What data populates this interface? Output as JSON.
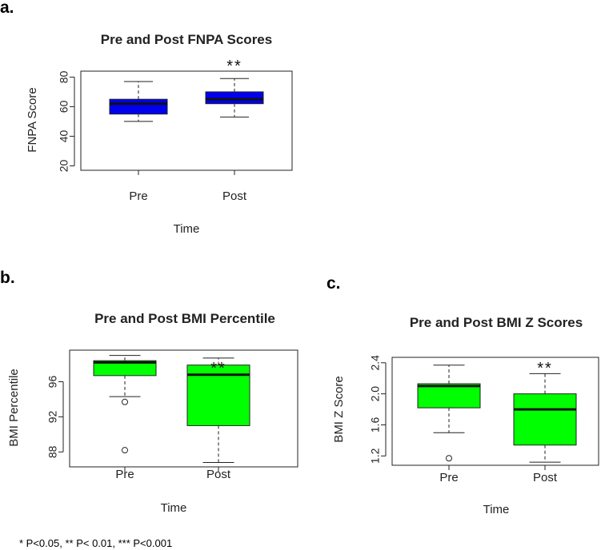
{
  "panels": [
    {
      "label": "a."
    },
    {
      "label": "b."
    },
    {
      "label": "c."
    }
  ],
  "footnote": "* P<0.05, ** P< 0.01, *** P<0.001",
  "chart_data": [
    {
      "type": "boxplot",
      "title": "Pre and Post FNPA Scores",
      "xlabel": "Time",
      "ylabel": "FNPA Score",
      "categories": [
        "Pre",
        "Post"
      ],
      "ylim": [
        17,
        84
      ],
      "yticks": [
        20,
        40,
        60,
        80
      ],
      "ytick_labels": [
        "20",
        "40",
        "60",
        "80"
      ],
      "fill_color": "#0000ee",
      "boxes": [
        {
          "whisker_low": 50,
          "q1": 55,
          "median": 62,
          "q3": 65,
          "whisker_high": 77,
          "outliers": []
        },
        {
          "whisker_low": 53,
          "q1": 62,
          "median": 65,
          "q3": 70,
          "whisker_high": 79,
          "outliers": []
        }
      ],
      "annotations": [
        {
          "category": "Post",
          "text": "**"
        }
      ]
    },
    {
      "type": "boxplot",
      "title": "Pre and Post BMI Percentile",
      "xlabel": "Time",
      "ylabel": "BMI Percentile",
      "categories": [
        "Pre",
        "Post"
      ],
      "ylim": [
        86.3,
        99.6
      ],
      "yticks": [
        88,
        92,
        96
      ],
      "ytick_labels": [
        "88",
        "92",
        "96"
      ],
      "fill_color": "#00ff00",
      "boxes": [
        {
          "whisker_low": 94.3,
          "q1": 96.7,
          "median": 98.2,
          "q3": 98.4,
          "whisker_high": 99.0,
          "outliers": [
            93.7,
            88.2
          ]
        },
        {
          "whisker_low": 86.8,
          "q1": 91.0,
          "median": 96.8,
          "q3": 97.9,
          "whisker_high": 98.7,
          "outliers": []
        }
      ],
      "annotations": [
        {
          "category": "Post",
          "text": "**"
        }
      ]
    },
    {
      "type": "boxplot",
      "title": "Pre and Post BMI Z Scores",
      "xlabel": "Time",
      "ylabel": "BMI Z Score",
      "categories": [
        "Pre",
        "Post"
      ],
      "ylim": [
        1.08,
        2.47
      ],
      "yticks": [
        1.2,
        1.6,
        2.0,
        2.4
      ],
      "ytick_labels": [
        "1.2",
        "1.6",
        "2.0",
        "2.4"
      ],
      "fill_color": "#00ff00",
      "boxes": [
        {
          "whisker_low": 1.5,
          "q1": 1.82,
          "median": 2.1,
          "q3": 2.13,
          "whisker_high": 2.37,
          "outliers": [
            1.17
          ]
        },
        {
          "whisker_low": 1.12,
          "q1": 1.34,
          "median": 1.8,
          "q3": 2.0,
          "whisker_high": 2.26,
          "outliers": []
        }
      ],
      "annotations": [
        {
          "category": "Post",
          "text": "**"
        }
      ]
    }
  ]
}
